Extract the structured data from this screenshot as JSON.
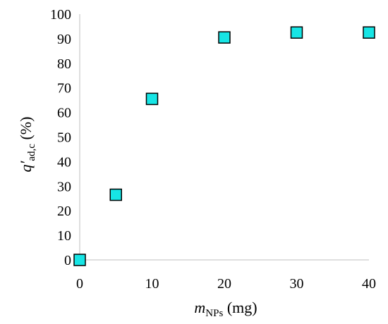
{
  "chart_data": {
    "type": "scatter",
    "title": "",
    "xlabel": {
      "main": "m",
      "sub": "NPs",
      "unit": " (mg)"
    },
    "ylabel": {
      "main": "q′",
      "sub": "ad,c",
      "unit": " (%)"
    },
    "xlim": [
      0,
      40
    ],
    "ylim": [
      0,
      100
    ],
    "xticks": [
      0,
      10,
      20,
      30,
      40
    ],
    "yticks": [
      0,
      10,
      20,
      30,
      40,
      50,
      60,
      70,
      80,
      90,
      100
    ],
    "grid": false,
    "marker": "square",
    "marker_color": "#17e5e5",
    "marker_edge_color": "#000000",
    "series": [
      {
        "x": [
          0,
          5,
          10,
          20,
          30,
          40
        ],
        "y": [
          0,
          26.5,
          65.5,
          90.5,
          92.5,
          92.5
        ]
      }
    ]
  }
}
